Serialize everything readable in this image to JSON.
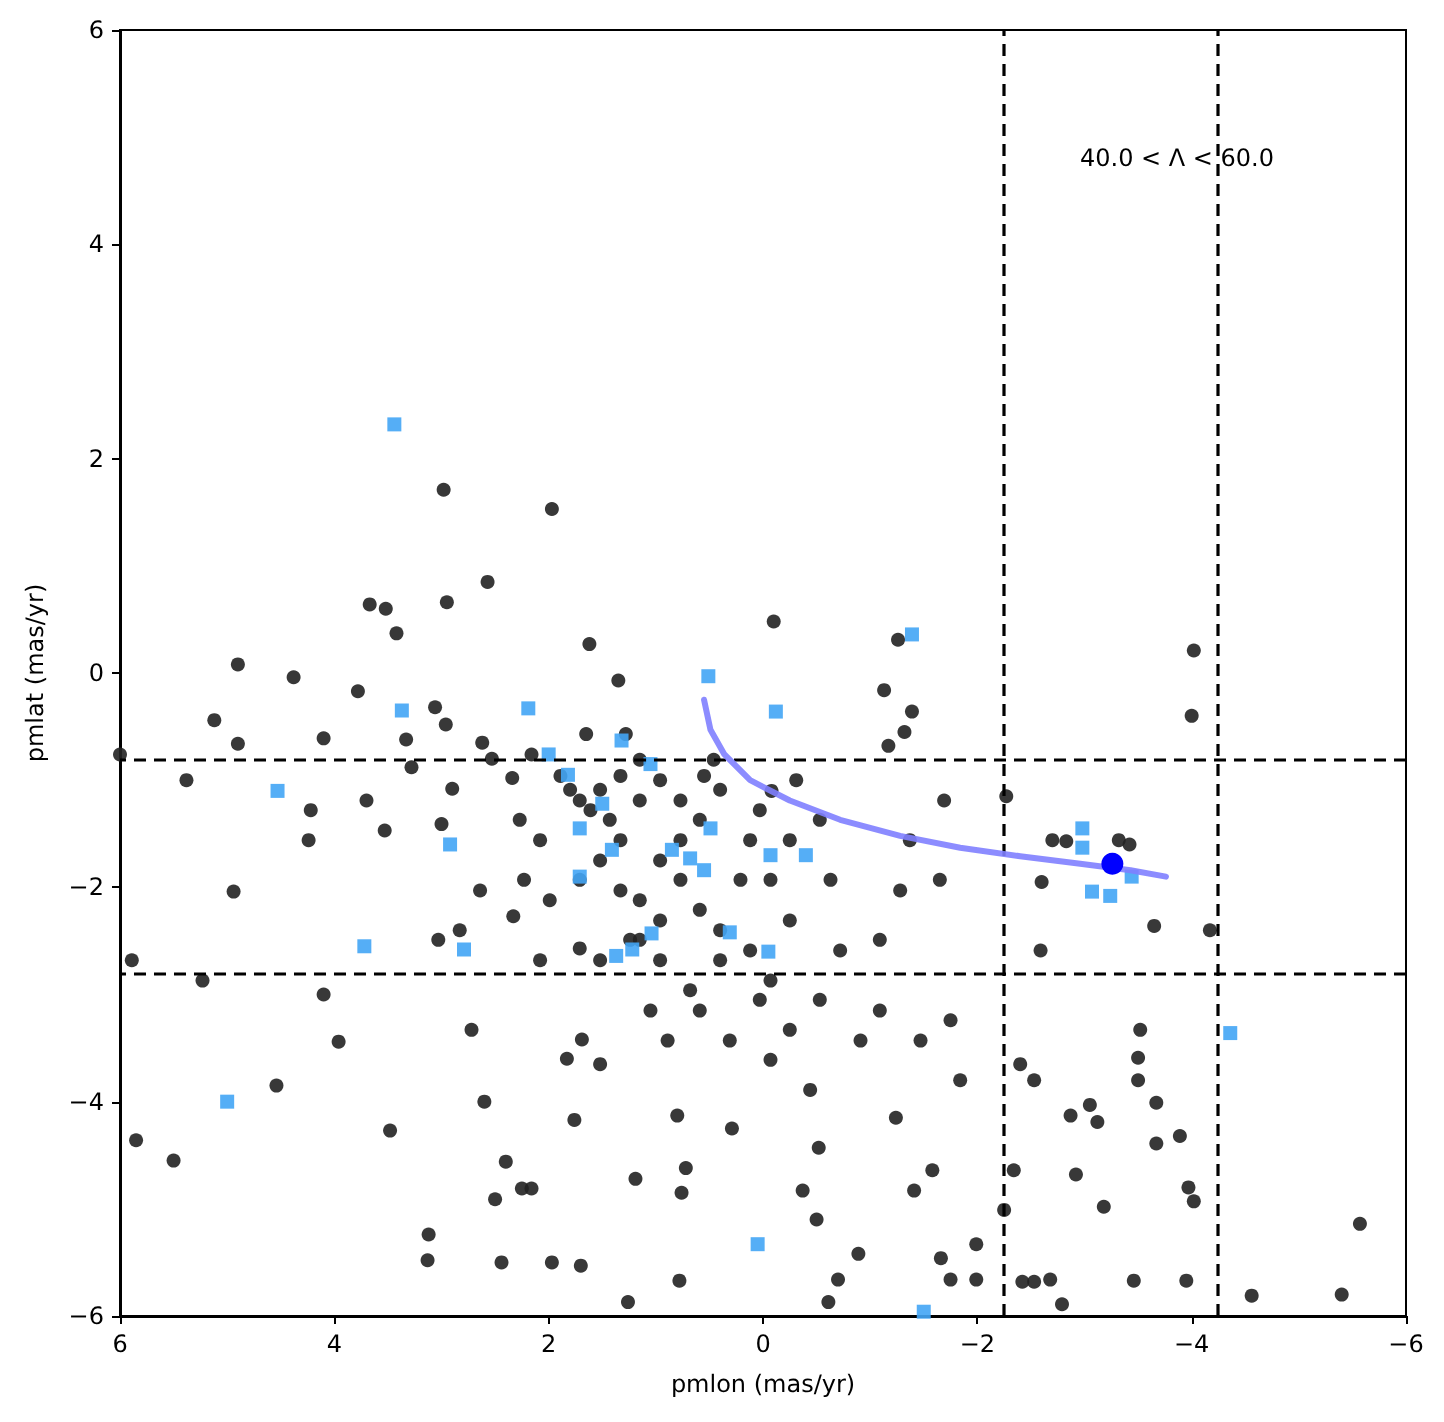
{
  "chart_data": {
    "type": "scatter",
    "xlabel": "pmlon (mas/yr)",
    "ylabel": "pmlat (mas/yr)",
    "xlim": [
      6,
      -6
    ],
    "ylim": [
      -6,
      6
    ],
    "xticks": [
      {
        "value": 6,
        "label": "6"
      },
      {
        "value": 4,
        "label": "4"
      },
      {
        "value": 2,
        "label": "2"
      },
      {
        "value": 0,
        "label": "0"
      },
      {
        "value": -2,
        "label": "−2"
      },
      {
        "value": -4,
        "label": "−4"
      },
      {
        "value": -6,
        "label": "−6"
      }
    ],
    "yticks": [
      {
        "value": -6,
        "label": "−6"
      },
      {
        "value": -4,
        "label": "−4"
      },
      {
        "value": -2,
        "label": "−2"
      },
      {
        "value": 0,
        "label": "0"
      },
      {
        "value": 2,
        "label": "2"
      },
      {
        "value": 4,
        "label": "4"
      },
      {
        "value": 6,
        "label": "6"
      }
    ],
    "grid": false,
    "annotations": [
      "40.0 < Λ < 60.0"
    ],
    "ref_lines": [
      {
        "axis": "x",
        "value": -2.25,
        "color": "#000000",
        "line_style": "dashed"
      },
      {
        "axis": "x",
        "value": -4.25,
        "color": "#000000",
        "line_style": "dashed"
      },
      {
        "axis": "y",
        "value": -0.8,
        "color": "#000000",
        "line_style": "dashed"
      },
      {
        "axis": "y",
        "value": -2.8,
        "color": "#000000",
        "line_style": "dashed"
      }
    ],
    "series": [
      {
        "marker": "circle",
        "color": "#222222",
        "x": [
          6,
          5.89,
          5.85,
          5.5,
          5.38,
          5.12,
          4.9,
          4.9,
          4.94,
          5.23,
          4.54,
          4.38,
          4.22,
          4.1,
          4.24,
          4.1,
          3.96,
          3.78,
          3.67,
          3.52,
          3.7,
          3.53,
          3.48,
          3.42,
          3.33,
          3.06,
          2.98,
          2.95,
          3.0,
          3.28,
          2.96,
          2.9,
          3.03,
          3.13,
          3.12,
          2.83,
          2.72,
          2.6,
          2.64,
          2.57,
          2.62,
          2.53,
          2.4,
          2.44,
          2.5,
          2.25,
          2.16,
          2.33,
          2.16,
          2.34,
          1.97,
          1.97,
          1.76,
          1.7,
          1.62,
          1.65,
          1.35,
          1.28,
          1.69,
          1.83,
          1.52,
          1.19,
          1.71,
          1.26,
          0.89,
          0.72,
          0.8,
          0.76,
          0.78,
          0.46,
          0.29,
          -0.1,
          -0.08,
          -0.31,
          -0.37,
          -0.5,
          -0.52,
          -0.61,
          -0.7,
          -0.89,
          -1.24,
          -1.26,
          -1.39,
          -1.13,
          -1.17,
          -1.32,
          -1.69,
          -1.41,
          -1.58,
          -1.66,
          -1.75,
          -1.99,
          -1.99,
          -2.25,
          -2.27,
          -2.4,
          -2.53,
          -2.42,
          -2.34,
          -2.53,
          -2.59,
          -2.7,
          -2.92,
          -2.79,
          -3.05,
          -3.12,
          -2.87,
          -3.18,
          -2.68,
          -3.52,
          -3.5,
          -3.5,
          -3.46,
          -3.67,
          -3.67,
          -3.89,
          -3.97,
          -4.02,
          -3.95,
          -4.02,
          -4.0,
          -4.17,
          -3.65,
          -2.6,
          -2.83,
          -3.32,
          -3.42,
          -4.56,
          -5.57,
          -5.4,
          1.89,
          1.8,
          1.71,
          1.61,
          1.52,
          1.43,
          1.33,
          1.52,
          1.71,
          1.33,
          1.15,
          0.96,
          0.77,
          0.59,
          0.77,
          0.96,
          1.15,
          0.59,
          0.4,
          0.21,
          0.12,
          0.03,
          0.4,
          1.15,
          0.96,
          0.77,
          0.55,
          1.33,
          1.15,
          1.24,
          1.52,
          0.96,
          0.68,
          0.4,
          0.12,
          0.03,
          0.59,
          1.05,
          0.31,
          -0.07,
          -0.25,
          -0.07,
          -0.25,
          -0.53,
          -0.63,
          -0.72,
          -0.53,
          -0.25,
          -0.07,
          -0.44,
          -1.09,
          -1.65,
          -1.28,
          -1.37,
          -0.91,
          -1.09,
          -1.47,
          -1.75,
          -1.84,
          2.08,
          1.99,
          2.08,
          2.27,
          2.23
        ],
        "values": [
          -0.76,
          -2.68,
          -4.36,
          -4.55,
          -1.0,
          -0.44,
          0.08,
          -0.66,
          -2.04,
          -2.87,
          -3.85,
          -0.04,
          -1.28,
          -0.61,
          -1.56,
          -3.0,
          -3.44,
          -0.17,
          0.64,
          0.6,
          -1.19,
          -1.47,
          -4.27,
          0.37,
          -0.62,
          -0.32,
          1.71,
          0.66,
          -1.41,
          -0.88,
          -0.48,
          -1.08,
          -2.49,
          -5.48,
          -5.24,
          -2.4,
          -3.33,
          -4.0,
          -2.03,
          0.85,
          -0.65,
          -0.8,
          -4.56,
          -5.5,
          -4.91,
          -4.81,
          -4.81,
          -2.27,
          -0.76,
          -0.98,
          1.53,
          -5.5,
          -4.17,
          -5.53,
          0.27,
          -0.57,
          -0.07,
          -0.57,
          -3.42,
          -3.6,
          -3.65,
          -4.72,
          -2.57,
          -5.87,
          -3.43,
          -4.62,
          -4.13,
          -4.85,
          -5.67,
          -0.81,
          -4.25,
          0.48,
          -1.1,
          -1.0,
          -4.83,
          -5.1,
          -4.43,
          -5.87,
          -5.66,
          -5.42,
          -4.15,
          0.31,
          -0.36,
          -0.16,
          -0.68,
          -0.55,
          -1.19,
          -4.83,
          -4.64,
          -5.46,
          -5.66,
          -5.33,
          -5.66,
          -5.01,
          -1.15,
          -3.65,
          -3.8,
          -5.68,
          -4.64,
          -5.68,
          -2.59,
          -1.56,
          -4.68,
          -5.89,
          -4.03,
          -4.19,
          -4.13,
          -4.98,
          -5.66,
          -3.33,
          -3.59,
          -3.8,
          -5.67,
          -4.01,
          -4.39,
          -4.32,
          -4.8,
          -4.93,
          -5.67,
          0.21,
          -0.4,
          -2.4,
          -2.36,
          -1.95,
          -1.57,
          -1.56,
          -1.6,
          -5.81,
          -5.14,
          -5.8,
          -0.96,
          -1.09,
          -1.19,
          -1.28,
          -1.09,
          -1.37,
          -1.56,
          -1.75,
          -1.93,
          -2.03,
          -2.12,
          -1.75,
          -1.56,
          -1.37,
          -1.93,
          -2.31,
          -2.49,
          -2.21,
          -2.4,
          -1.93,
          -1.56,
          -1.28,
          -1.09,
          -0.81,
          -1.0,
          -1.19,
          -0.96,
          -0.96,
          -1.19,
          -2.49,
          -2.68,
          -2.68,
          -2.96,
          -2.68,
          -2.59,
          -3.05,
          -3.15,
          -3.15,
          -3.43,
          -2.87,
          -2.31,
          -1.93,
          -1.56,
          -1.37,
          -1.93,
          -2.59,
          -3.05,
          -3.33,
          -3.61,
          -3.89,
          -2.49,
          -1.93,
          -2.03,
          -1.56,
          -3.43,
          -3.15,
          -3.43,
          -3.24,
          -3.8,
          -2.68,
          -2.12,
          -1.56,
          -1.37,
          -1.93
        ]
      },
      {
        "marker": "square",
        "color": "#42a5f5",
        "x": [
          3.44,
          3.37,
          2.19,
          4.53,
          3.72,
          2.79,
          2.92,
          5.0,
          2.0,
          1.82,
          1.71,
          1.71,
          1.5,
          1.41,
          1.32,
          1.05,
          0.85,
          1.04,
          1.22,
          1.37,
          0.51,
          0.49,
          0.55,
          0.31,
          -0.07,
          -0.05,
          -0.12,
          -0.4,
          0.05,
          -1.5,
          -1.39,
          -2.98,
          -2.98,
          -3.07,
          -3.24,
          -3.44,
          -4.36,
          0.68
        ],
        "values": [
          2.32,
          -0.35,
          -0.33,
          -1.1,
          -2.55,
          -2.58,
          -1.6,
          -4.0,
          -0.76,
          -0.95,
          -1.45,
          -1.9,
          -1.22,
          -1.65,
          -0.63,
          -0.85,
          -1.65,
          -2.43,
          -2.58,
          -2.64,
          -0.03,
          -1.45,
          -1.84,
          -2.42,
          -1.7,
          -2.6,
          -0.36,
          -1.7,
          -5.33,
          -5.96,
          0.36,
          -1.45,
          -1.63,
          -2.04,
          -2.08,
          -1.9,
          -3.36,
          -1.73
        ]
      },
      {
        "type": "line",
        "marker": "none",
        "color": "#7f7fff",
        "x": [
          0.55,
          0.49,
          0.36,
          0.12,
          -0.25,
          -0.72,
          -1.28,
          -1.84,
          -2.4,
          -2.96,
          -3.43,
          -3.76
        ],
        "values": [
          -0.25,
          -0.53,
          -0.76,
          -1.0,
          -1.19,
          -1.37,
          -1.52,
          -1.63,
          -1.71,
          -1.78,
          -1.84,
          -1.9
        ]
      },
      {
        "marker": "circle",
        "color": "#0000ff",
        "x": [
          -3.26
        ],
        "values": [
          -1.78
        ]
      }
    ]
  }
}
